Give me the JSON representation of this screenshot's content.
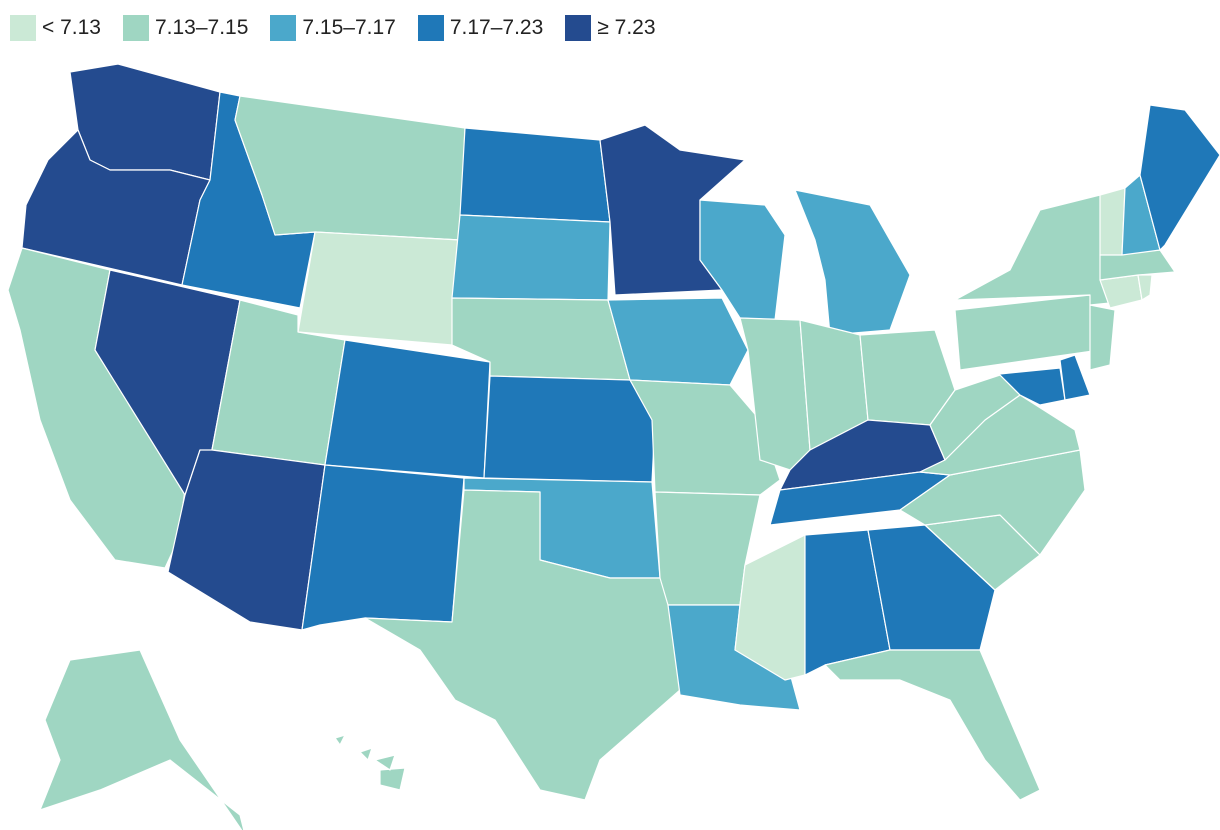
{
  "legend": [
    {
      "label": "< 7.13",
      "class": "c0"
    },
    {
      "label": "7.13–7.15",
      "class": "c1"
    },
    {
      "label": "7.15–7.17",
      "class": "c2"
    },
    {
      "label": "7.17–7.23",
      "class": "c3"
    },
    {
      "label": "≥ 7.23",
      "class": "c4"
    }
  ],
  "colors": {
    "c0": "#cbe9d6",
    "c1": "#9fd6c2",
    "c2": "#4ba8cb",
    "c3": "#1f78b8",
    "c4": "#244b8f"
  },
  "states": {
    "WA": "c4",
    "OR": "c4",
    "CA": "c1",
    "NV": "c4",
    "ID": "c3",
    "MT": "c1",
    "WY": "c0",
    "UT": "c1",
    "AZ": "c4",
    "CO": "c3",
    "NM": "c3",
    "ND": "c3",
    "SD": "c2",
    "NE": "c1",
    "KS": "c3",
    "OK": "c2",
    "TX": "c1",
    "MN": "c4",
    "IA": "c2",
    "MO": "c1",
    "AR": "c1",
    "LA": "c2",
    "WI": "c2",
    "IL": "c1",
    "MI": "c2",
    "IN": "c1",
    "OH": "c1",
    "KY": "c4",
    "TN": "c3",
    "MS": "c0",
    "AL": "c3",
    "GA": "c3",
    "FL": "c1",
    "SC": "c1",
    "NC": "c1",
    "VA": "c1",
    "WV": "c1",
    "MD": "c3",
    "DE": "c3",
    "PA": "c1",
    "NJ": "c1",
    "NY": "c1",
    "CT": "c0",
    "RI": "c0",
    "MA": "c1",
    "VT": "c0",
    "NH": "c2",
    "ME": "c3",
    "AK": "c1",
    "HI": "c1"
  }
}
